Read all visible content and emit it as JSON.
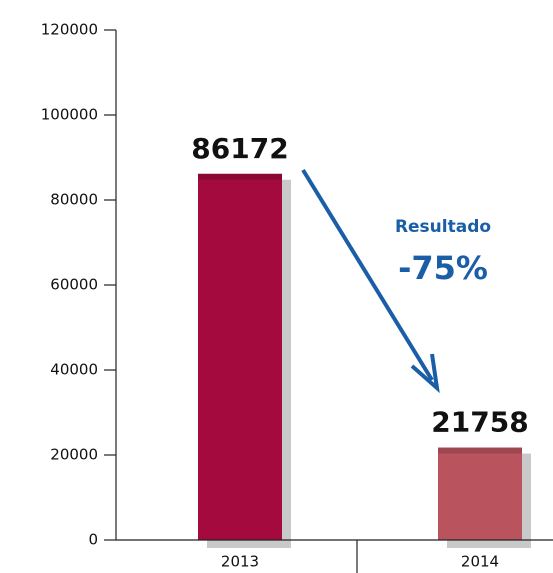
{
  "chart_data": {
    "type": "bar",
    "categories": [
      "2013",
      "2014"
    ],
    "values": [
      86172,
      21758
    ],
    "colors": [
      "#a50a3e",
      "#b9545f"
    ],
    "shadow_color": "#c9c9c9",
    "ylim": [
      0,
      120000
    ],
    "yticks": [
      0,
      20000,
      40000,
      60000,
      80000,
      100000,
      120000
    ],
    "annotations": [
      "Resultado",
      "-75%"
    ],
    "annotation_color": "#1b5ea8"
  }
}
